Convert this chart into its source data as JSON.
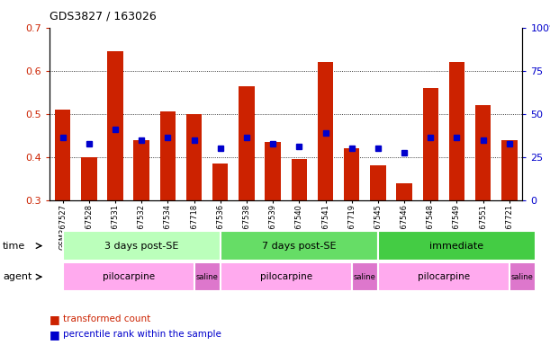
{
  "title": "GDS3827 / 163026",
  "samples": [
    "GSM367527",
    "GSM367528",
    "GSM367531",
    "GSM367532",
    "GSM367534",
    "GSM367718",
    "GSM367536",
    "GSM367538",
    "GSM367539",
    "GSM367540",
    "GSM367541",
    "GSM367719",
    "GSM367545",
    "GSM367546",
    "GSM367548",
    "GSM367549",
    "GSM367551",
    "GSM367721"
  ],
  "red_values": [
    0.51,
    0.4,
    0.645,
    0.44,
    0.505,
    0.5,
    0.385,
    0.565,
    0.435,
    0.395,
    0.62,
    0.42,
    0.38,
    0.34,
    0.56,
    0.62,
    0.52,
    0.44
  ],
  "blue_values": [
    0.445,
    0.43,
    0.465,
    0.44,
    0.445,
    0.44,
    0.42,
    0.445,
    0.43,
    0.425,
    0.455,
    0.42,
    0.42,
    0.41,
    0.445,
    0.445,
    0.44,
    0.43
  ],
  "ymin": 0.3,
  "ymax": 0.7,
  "yticks_left": [
    0.3,
    0.4,
    0.5,
    0.6,
    0.7
  ],
  "yticks_right": [
    0,
    25,
    50,
    75,
    100
  ],
  "bar_color": "#cc2200",
  "dot_color": "#0000cc",
  "time_groups": [
    {
      "label": "3 days post-SE",
      "start": 0,
      "end": 6,
      "color": "#bbffbb"
    },
    {
      "label": "7 days post-SE",
      "start": 6,
      "end": 12,
      "color": "#66dd66"
    },
    {
      "label": "immediate",
      "start": 12,
      "end": 18,
      "color": "#44cc44"
    }
  ],
  "agent_groups": [
    {
      "label": "pilocarpine",
      "start": 0,
      "end": 5,
      "color": "#ffaaee"
    },
    {
      "label": "saline",
      "start": 5,
      "end": 6,
      "color": "#dd77cc"
    },
    {
      "label": "pilocarpine",
      "start": 6,
      "end": 11,
      "color": "#ffaaee"
    },
    {
      "label": "saline",
      "start": 11,
      "end": 12,
      "color": "#dd77cc"
    },
    {
      "label": "pilocarpine",
      "start": 12,
      "end": 17,
      "color": "#ffaaee"
    },
    {
      "label": "saline",
      "start": 17,
      "end": 18,
      "color": "#dd77cc"
    }
  ],
  "legend_red": "transformed count",
  "legend_blue": "percentile rank within the sample",
  "right_yaxis_color": "#0000cc",
  "left_yaxis_color": "#cc2200"
}
